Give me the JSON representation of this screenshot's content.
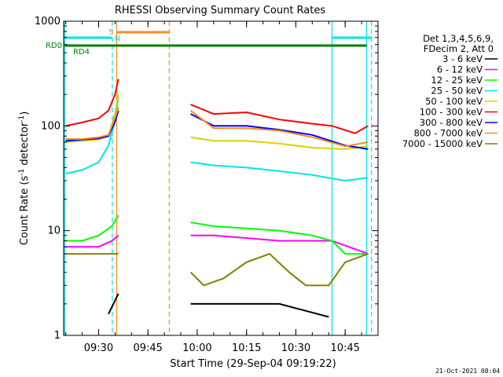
{
  "title": "RHESSI Observing Summary Count Rates",
  "xlabel": "Start Time (29-Sep-04 09:19:22)",
  "ylabel_main": "Count Rate (s",
  "ylabel_sup1": "-1",
  "ylabel_mid": " detector",
  "ylabel_sup2": "-1",
  "ylabel_end": ")",
  "timestamp": "21-Oct-2021 08:04",
  "legend_header_1": "Det 1,3,4,5,6,9,",
  "legend_header_2": "FDecim 2, Att 0",
  "flags": {
    "rd0": "RD0",
    "rd4": "RD4",
    "s": "S",
    "n": "N"
  },
  "colors": {
    "3-6": "#000000",
    "6-12": "#ff00ff",
    "12-25": "#00ff00",
    "25-50": "#00e5e5",
    "50-100": "#d4d400",
    "100-300": "#ff0000",
    "300-800": "#0000ff",
    "800-7000": "#ff8c1a",
    "7000-15000": "#808000",
    "rd0_bar": "#00e5e5",
    "rd4_bar": "#008000",
    "s_bar": "#ff8c1a"
  },
  "chart_data": {
    "type": "line",
    "title": "RHESSI Observing Summary Count Rates",
    "xlabel": "Start Time (29-Sep-04 09:19:22)",
    "ylabel": "Count Rate (s-1 detector-1)",
    "yscale": "log",
    "ylim": [
      1,
      1000
    ],
    "xlim": [
      "09:19:22",
      "10:55:00"
    ],
    "xticks": [
      "09:30",
      "09:45",
      "10:00",
      "10:15",
      "10:30",
      "10:45"
    ],
    "yticks": [
      "1",
      "10",
      "100",
      "1000"
    ],
    "legend_position": "right",
    "series": [
      {
        "name": "3 - 6 keV",
        "color_key": "3-6",
        "points": [
          [
            "09:33",
            1.6
          ],
          [
            "09:36",
            2.5
          ],
          [
            "09:58",
            2.0
          ],
          [
            "10:10",
            2.0
          ],
          [
            "10:25",
            2.0
          ],
          [
            "10:40",
            1.5
          ]
        ]
      },
      {
        "name": "6 - 12 keV",
        "color_key": "6-12",
        "points": [
          [
            "09:20",
            7
          ],
          [
            "09:25",
            7
          ],
          [
            "09:30",
            7
          ],
          [
            "09:34",
            8
          ],
          [
            "09:36",
            9
          ],
          [
            "09:58",
            9
          ],
          [
            "10:05",
            9
          ],
          [
            "10:15",
            8.5
          ],
          [
            "10:25",
            8
          ],
          [
            "10:35",
            8
          ],
          [
            "10:41",
            8
          ],
          [
            "10:52",
            6
          ]
        ]
      },
      {
        "name": "12 - 25 keV",
        "color_key": "12-25",
        "points": [
          [
            "09:20",
            8
          ],
          [
            "09:25",
            8
          ],
          [
            "09:30",
            9
          ],
          [
            "09:34",
            11
          ],
          [
            "09:36",
            14
          ],
          [
            "09:58",
            12
          ],
          [
            "10:05",
            11
          ],
          [
            "10:15",
            10.5
          ],
          [
            "10:25",
            10
          ],
          [
            "10:35",
            9
          ],
          [
            "10:41",
            8
          ],
          [
            "10:45",
            6
          ],
          [
            "10:52",
            6
          ]
        ]
      },
      {
        "name": "25 - 50 keV",
        "color_key": "25-50",
        "points": [
          [
            "09:20",
            35
          ],
          [
            "09:25",
            38
          ],
          [
            "09:30",
            45
          ],
          [
            "09:33",
            65
          ],
          [
            "09:35",
            110
          ],
          [
            "09:36",
            190
          ],
          [
            "09:58",
            45
          ],
          [
            "10:05",
            42
          ],
          [
            "10:15",
            40
          ],
          [
            "10:25",
            37
          ],
          [
            "10:35",
            34
          ],
          [
            "10:45",
            30
          ],
          [
            "10:52",
            32
          ]
        ]
      },
      {
        "name": "50 - 100 keV",
        "color_key": "50-100",
        "points": [
          [
            "09:20",
            70
          ],
          [
            "09:25",
            72
          ],
          [
            "09:30",
            74
          ],
          [
            "09:33",
            80
          ],
          [
            "09:35",
            130
          ],
          [
            "09:36",
            200
          ],
          [
            "09:58",
            78
          ],
          [
            "10:05",
            72
          ],
          [
            "10:15",
            72
          ],
          [
            "10:25",
            68
          ],
          [
            "10:35",
            62
          ],
          [
            "10:45",
            60
          ],
          [
            "10:52",
            64
          ]
        ]
      },
      {
        "name": "100 - 300 keV",
        "color_key": "100-300",
        "points": [
          [
            "09:20",
            100
          ],
          [
            "09:25",
            108
          ],
          [
            "09:30",
            118
          ],
          [
            "09:33",
            140
          ],
          [
            "09:35",
            200
          ],
          [
            "09:36",
            280
          ],
          [
            "09:58",
            160
          ],
          [
            "10:05",
            130
          ],
          [
            "10:15",
            135
          ],
          [
            "10:25",
            115
          ],
          [
            "10:35",
            105
          ],
          [
            "10:41",
            100
          ],
          [
            "10:48",
            85
          ],
          [
            "10:52",
            100
          ]
        ]
      },
      {
        "name": "300 - 800 keV",
        "color_key": "300-800",
        "points": [
          [
            "09:20",
            72
          ],
          [
            "09:25",
            74
          ],
          [
            "09:30",
            76
          ],
          [
            "09:33",
            80
          ],
          [
            "09:35",
            110
          ],
          [
            "09:36",
            140
          ],
          [
            "09:58",
            130
          ],
          [
            "10:05",
            100
          ],
          [
            "10:15",
            100
          ],
          [
            "10:25",
            92
          ],
          [
            "10:35",
            82
          ],
          [
            "10:45",
            65
          ],
          [
            "10:52",
            60
          ]
        ]
      },
      {
        "name": "800 - 7000 keV",
        "color_key": "800-7000",
        "points": [
          [
            "09:20",
            75
          ],
          [
            "09:25",
            75
          ],
          [
            "09:30",
            78
          ],
          [
            "09:33",
            82
          ],
          [
            "09:35",
            120
          ],
          [
            "09:36",
            150
          ],
          [
            "09:58",
            140
          ],
          [
            "10:05",
            95
          ],
          [
            "10:15",
            95
          ],
          [
            "10:25",
            90
          ],
          [
            "10:35",
            78
          ],
          [
            "10:45",
            64
          ],
          [
            "10:52",
            70
          ]
        ]
      },
      {
        "name": "7000 - 15000 keV",
        "color_key": "7000-15000",
        "points": [
          [
            "09:20",
            6
          ],
          [
            "09:25",
            6
          ],
          [
            "09:30",
            6
          ],
          [
            "09:33",
            6
          ],
          [
            "09:36",
            6
          ],
          [
            "09:58",
            4
          ],
          [
            "10:02",
            3
          ],
          [
            "10:08",
            3.5
          ],
          [
            "10:15",
            5
          ],
          [
            "10:22",
            6
          ],
          [
            "10:28",
            4
          ],
          [
            "10:33",
            3
          ],
          [
            "10:40",
            3
          ],
          [
            "10:45",
            5
          ],
          [
            "10:52",
            6
          ]
        ]
      }
    ]
  }
}
